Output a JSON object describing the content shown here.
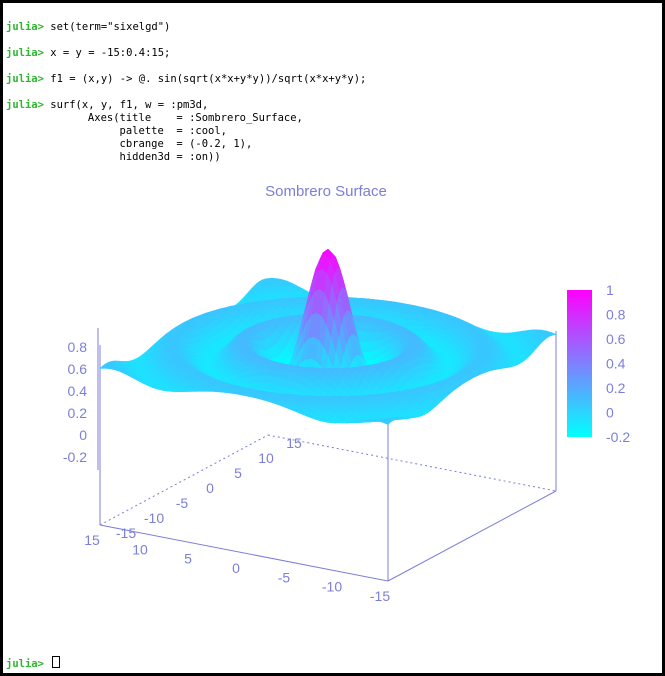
{
  "terminal": {
    "prompt": "julia>",
    "commands": [
      "set(term=\"sixelgd\")",
      "x = y = -15:0.4:15;",
      "f1 = (x,y) -> @. sin(sqrt(x*x+y*y))/sqrt(x*x+y*y);",
      "surf(x, y, f1, w = :pm3d,",
      "      Axes(title    = :Sombrero_Surface,",
      "           palette  = :cool,",
      "           cbrange  = (-0.2, 1),",
      "           hidden3d = :on))"
    ]
  },
  "chart_data": {
    "type": "surface",
    "title": "Sombrero Surface",
    "function": "sin(sqrt(x*x+y*y))/sqrt(x*x+y*y)",
    "x_range": [
      -15,
      15
    ],
    "y_range": [
      -15,
      15
    ],
    "x_ticks": [
      "-15",
      "-10",
      "-5",
      "0",
      "5",
      "10",
      "15"
    ],
    "y_ticks": [
      "-15",
      "-10",
      "-5",
      "0",
      "5",
      "10",
      "15"
    ],
    "z_ticks": [
      "-0.2",
      "0",
      "0.2",
      "0.4",
      "0.6",
      "0.8"
    ],
    "z_range": [
      -0.2,
      1
    ],
    "colorbar": {
      "range": [
        -0.2,
        1
      ],
      "ticks": [
        "-0.2",
        "0",
        "0.2",
        "0.4",
        "0.6",
        "0.8",
        "1"
      ],
      "palette": "cool",
      "low_color": "#00ffff",
      "high_color": "#ff00ff"
    },
    "peak_z": 1
  }
}
